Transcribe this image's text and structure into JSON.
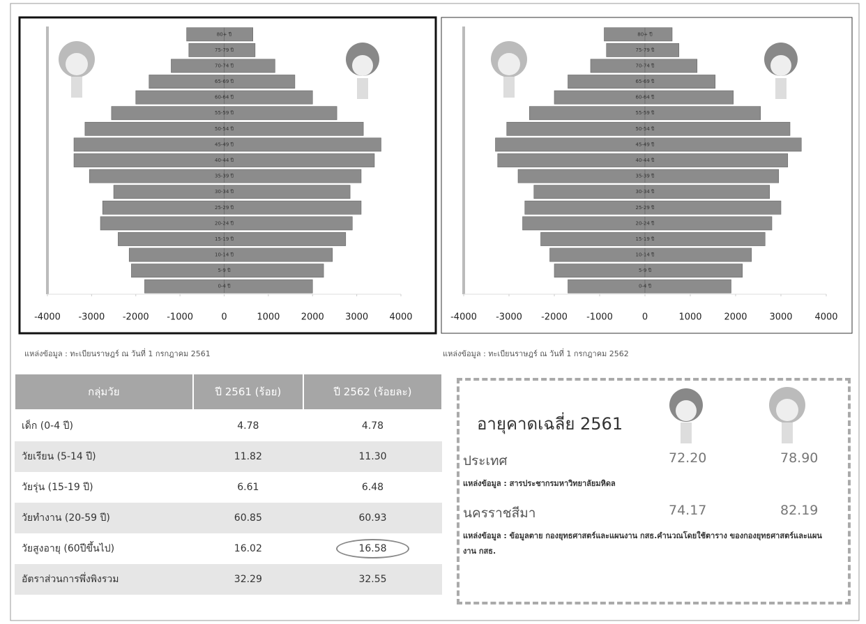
{
  "chart_data": [
    {
      "type": "bar",
      "orientation": "horizontal",
      "categories": [
        "0-4 ปี",
        "5-9 ปี",
        "10-14 ปี",
        "15-19 ปี",
        "20-24 ปี",
        "25-29 ปี",
        "30-34 ปี",
        "35-39 ปี",
        "40-44 ปี",
        "45-49 ปี",
        "50-54 ปี",
        "55-59 ปี",
        "60-64 ปี",
        "65-69 ปี",
        "70-74 ปี",
        "75-79 ปี",
        "80+ ปี"
      ],
      "series": [
        {
          "color": "#8c8c8c",
          "values": [
            -1800,
            -2100,
            -2150,
            -2400,
            -2800,
            -2750,
            -2500,
            -3050,
            -3400,
            -3400,
            -3150,
            -2550,
            -2000,
            -1700,
            -1200,
            -800,
            -850
          ]
        },
        {
          "color": "#8c8c8c",
          "values": [
            2000,
            2250,
            2450,
            2750,
            2900,
            3100,
            2850,
            3100,
            3400,
            3550,
            3150,
            2550,
            2000,
            1600,
            1150,
            700,
            650
          ]
        }
      ],
      "xlim": [
        -4000,
        4000
      ],
      "xticks": [
        -4000,
        -3000,
        -2000,
        -1000,
        0,
        1000,
        2000,
        3000,
        4000
      ],
      "source": "แหล่งข้อมูล : ทะเบียนราษฎร์ ณ วันที่ 1 กรกฎาคม 2561"
    },
    {
      "type": "bar",
      "orientation": "horizontal",
      "categories": [
        "0-4 ปี",
        "5-9 ปี",
        "10-14 ปี",
        "15-19 ปี",
        "20-24 ปี",
        "25-29 ปี",
        "30-34 ปี",
        "35-39 ปี",
        "40-44 ปี",
        "45-49 ปี",
        "50-54 ปี",
        "55-59 ปี",
        "60-64 ปี",
        "65-69 ปี",
        "70-74 ปี",
        "75-79 ปี",
        "80+ ปี"
      ],
      "series": [
        {
          "color": "#8c8c8c",
          "values": [
            -1700,
            -2000,
            -2100,
            -2300,
            -2700,
            -2650,
            -2450,
            -2800,
            -3250,
            -3300,
            -3050,
            -2550,
            -2000,
            -1700,
            -1200,
            -850,
            -900
          ]
        },
        {
          "color": "#8c8c8c",
          "values": [
            1900,
            2150,
            2350,
            2650,
            2800,
            3000,
            2750,
            2950,
            3150,
            3450,
            3200,
            2550,
            1950,
            1550,
            1150,
            750,
            600
          ]
        }
      ],
      "xlim": [
        -4000,
        4000
      ],
      "xticks": [
        -4000,
        -3000,
        -2000,
        -1000,
        0,
        1000,
        2000,
        3000,
        4000
      ],
      "source": "แหล่งข้อมูล : ทะเบียนราษฎร์ ณ วันที่ 1 กรกฎาคม 2562"
    }
  ],
  "table": {
    "header": [
      "กลุ่มวัย",
      "ปี 2561 (ร้อย)",
      "ปี 2562 (ร้อยละ)"
    ],
    "rows": [
      [
        "เด็ก (0-4 ปี)",
        "4.78",
        "4.78"
      ],
      [
        "วัยเรียน (5-14 ปี)",
        "11.82",
        "11.30"
      ],
      [
        "วัยรุ่น (15-19 ปี)",
        "6.61",
        "6.48"
      ],
      [
        "วัยทำงาน (20-59 ปี)",
        "60.85",
        "60.93"
      ],
      [
        "วัยสูงอายุ (60ปีขึ้นไป)",
        "16.02",
        "16.58"
      ],
      [
        "อัตราส่วนการพึ่งพิงรวม",
        "32.29",
        "32.55"
      ]
    ]
  },
  "life_expectancy": {
    "title": "อายุคาดเฉลี่ย 2561",
    "rows": [
      {
        "label": "ประเทศ",
        "male": "72.20",
        "female": "78.90",
        "source": "แหล่งข้อมูล : สารประชากรมหาวิทยาลัยมหิดล"
      },
      {
        "label": "นครราชสีมา",
        "male": "74.17",
        "female": "82.19",
        "source": "แหล่งข้อมูล : ข้อมูลตาย กองยุทธศาสตร์และแผนงาน กสธ.คำนวณโดยใช้ตาราง ของกองยุทธศาสตร์และแผนงาน กสธ."
      }
    ]
  }
}
